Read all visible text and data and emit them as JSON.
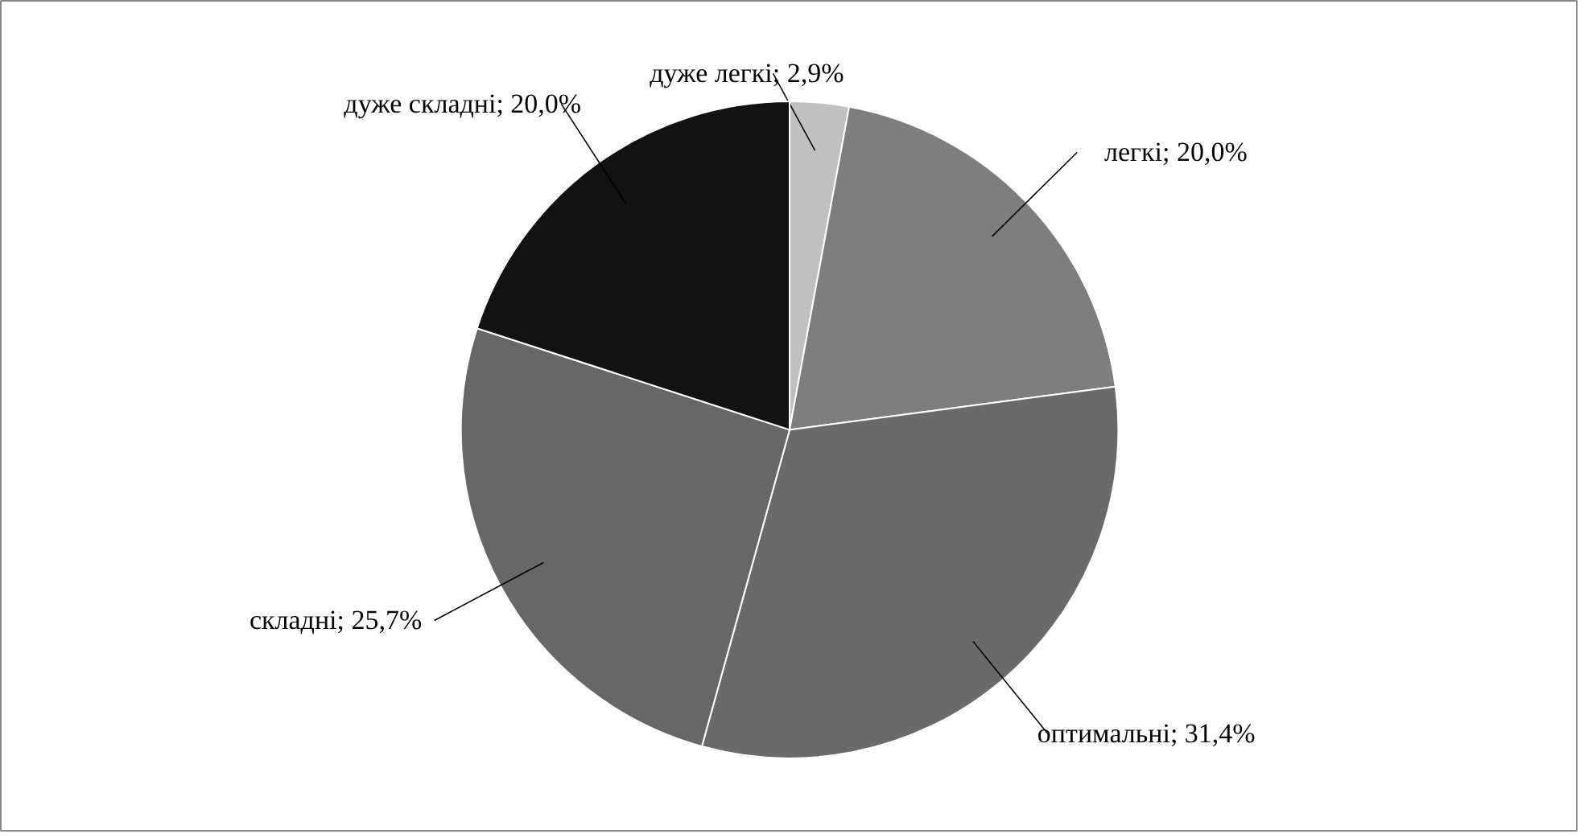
{
  "chart_data": {
    "type": "pie",
    "categories": [
      "дуже легкі",
      "легкі",
      "оптимальні",
      "складні",
      "дуже складні"
    ],
    "values": [
      2.9,
      20.0,
      31.4,
      25.7,
      20.0
    ],
    "value_labels": [
      "2,9%",
      "20,0%",
      "31,4%",
      "25,7%",
      "20,0%"
    ],
    "colors": [
      "#c0c0c0",
      "#7e7e7e",
      "#6a6a6a",
      "#676767",
      "#121212"
    ]
  }
}
